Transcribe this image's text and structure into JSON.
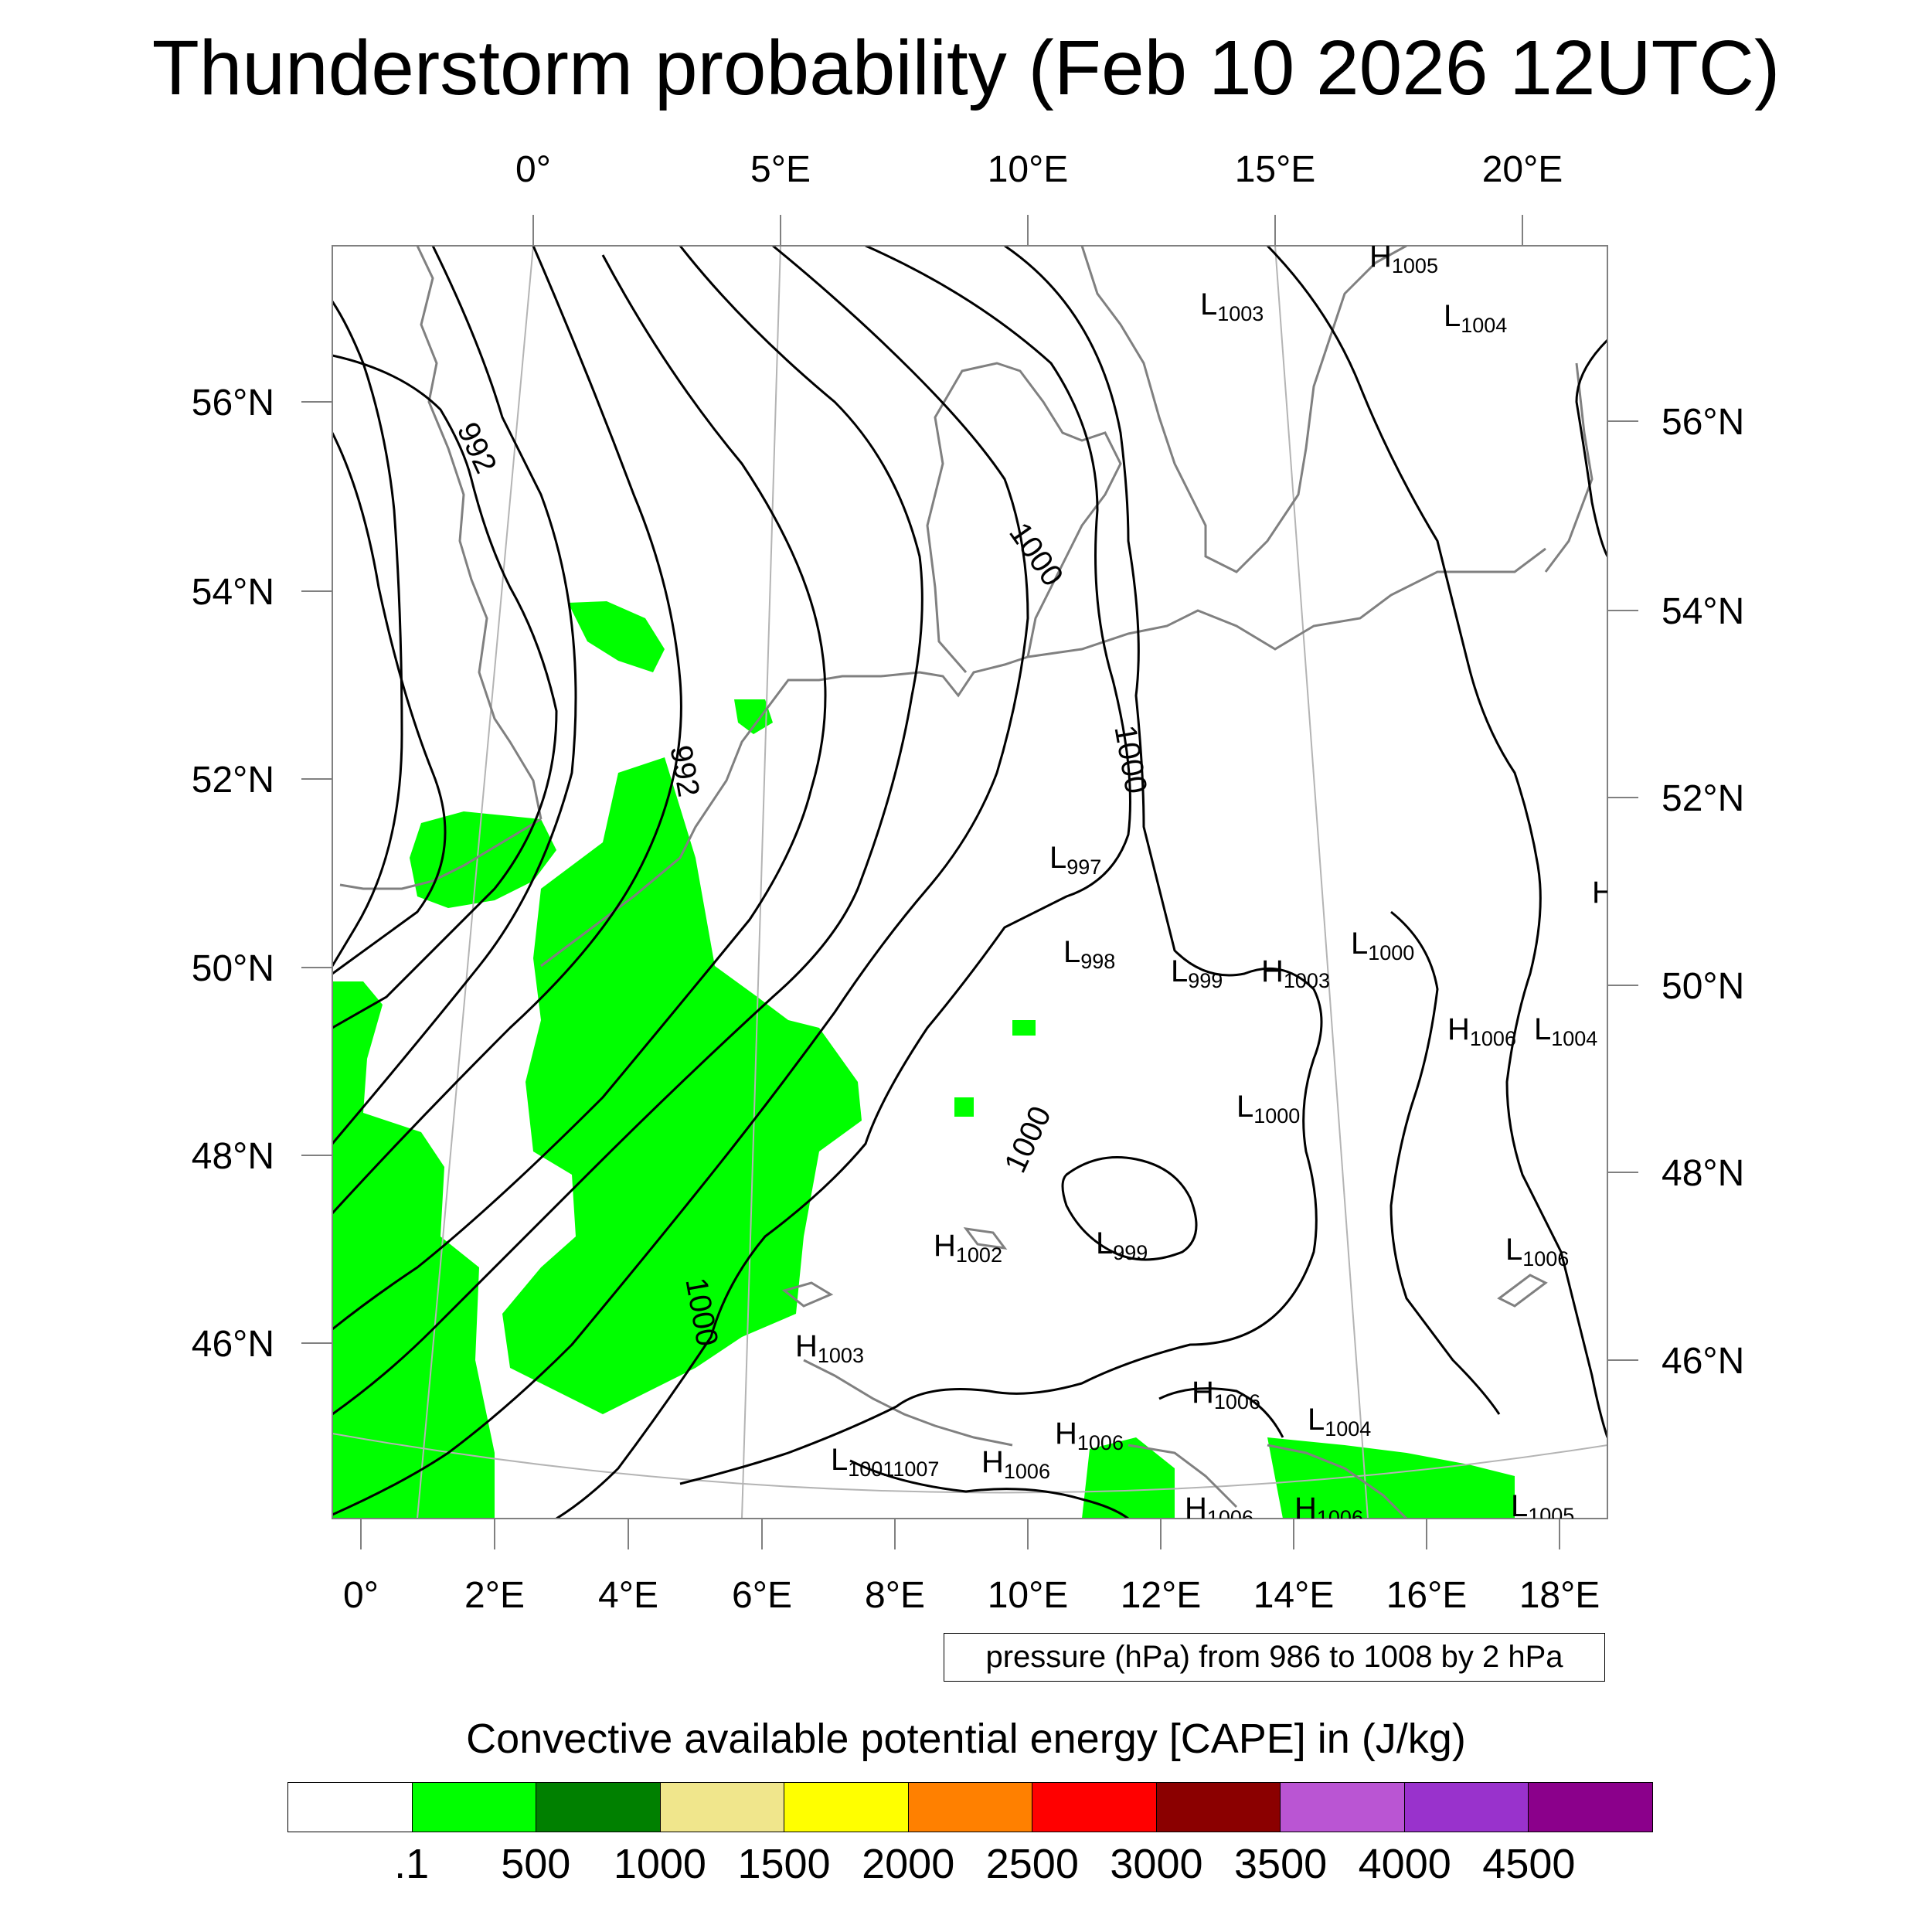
{
  "title": "Thunderstorm probability (Feb 10 2026 12UTC)",
  "top_lon_labels": [
    "0°",
    "5°E",
    "10°E",
    "15°E",
    "20°E"
  ],
  "bottom_lon_labels": [
    "0°",
    "2°E",
    "4°E",
    "6°E",
    "8°E",
    "10°E",
    "12°E",
    "14°E",
    "16°E",
    "18°E"
  ],
  "left_lat_labels": [
    "56°N",
    "54°N",
    "52°N",
    "50°N",
    "48°N",
    "46°N"
  ],
  "right_lat_labels": [
    "56°N",
    "54°N",
    "52°N",
    "50°N",
    "48°N",
    "46°N"
  ],
  "contour_labels": [
    "992",
    "992",
    "1000",
    "1000",
    "1000",
    "1000"
  ],
  "pressure_centers": [
    {
      "type": "H",
      "value": "1005"
    },
    {
      "type": "L",
      "value": "1003"
    },
    {
      "type": "L",
      "value": "1004"
    },
    {
      "type": "L",
      "value": "997"
    },
    {
      "type": "L",
      "value": "998"
    },
    {
      "type": "L",
      "value": "999"
    },
    {
      "type": "H",
      "value": "1003"
    },
    {
      "type": "L",
      "value": "1000"
    },
    {
      "type": "H",
      "value": "1006"
    },
    {
      "type": "L",
      "value": "1004"
    },
    {
      "type": "L",
      "value": "1000"
    },
    {
      "type": "H",
      "value": "1002"
    },
    {
      "type": "L",
      "value": "999"
    },
    {
      "type": "L",
      "value": "1006"
    },
    {
      "type": "H",
      "value": "1003"
    },
    {
      "type": "H",
      "value": "1006"
    },
    {
      "type": "L",
      "value": "1004"
    },
    {
      "type": "H",
      "value": "1006"
    },
    {
      "type": "L",
      "value": "1001"
    },
    {
      "type": "",
      "value": "1007"
    },
    {
      "type": "H",
      "value": "1006"
    },
    {
      "type": "H",
      "value": "1006"
    },
    {
      "type": "H",
      "value": "1006"
    },
    {
      "type": "L",
      "value": "1005"
    },
    {
      "type": "H",
      "value": ""
    }
  ],
  "contour_note": "pressure (hPa) from 986 to 1008 by 2 hPa",
  "colorbar": {
    "title": "Convective available potential energy [CAPE] in (J/kg)",
    "colors": [
      "#ffffff",
      "#00ff00",
      "#008000",
      "#f0e68c",
      "#ffff00",
      "#ff8000",
      "#ff0000",
      "#8b0000",
      "#ba55d3",
      "#9932cc",
      "#8b008b"
    ],
    "tick_labels": [
      ".1",
      "500",
      "1000",
      "1500",
      "2000",
      "2500",
      "3000",
      "3500",
      "4000",
      "4500"
    ]
  },
  "colors": {
    "cape_fill": "#00ff00",
    "isobar": "#000000",
    "coastline": "#808080",
    "graticule": "#b4b4b4"
  }
}
